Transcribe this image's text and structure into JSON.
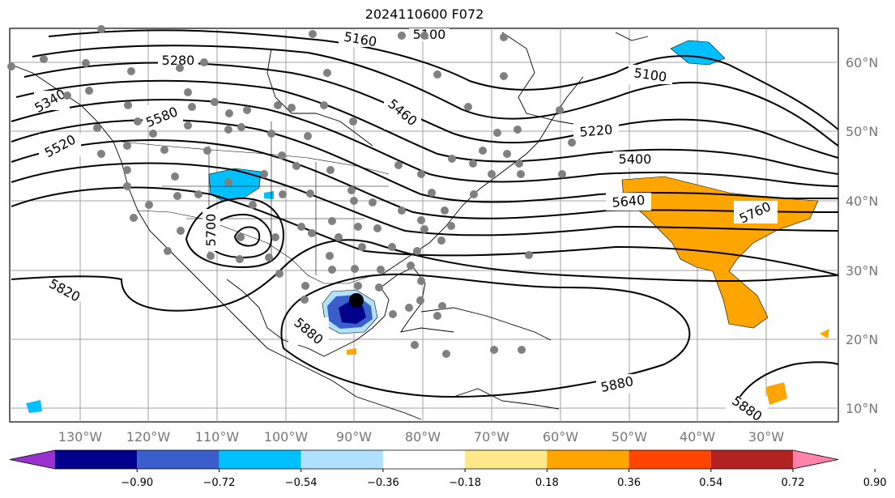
{
  "title": "2024110600 F072",
  "lat_labels": [
    "60°N",
    "50°N",
    "40°N",
    "30°N",
    "20°N",
    "10°N"
  ],
  "lon_labels": [
    "130°W",
    "120°W",
    "110°W",
    "100°W",
    "90°W",
    "80°W",
    "70°W",
    "60°W",
    "50°W",
    "40°W",
    "30°W"
  ],
  "contour_labels": [
    "5160",
    "5100",
    "5280",
    "5340",
    "5460",
    "5580",
    "5520",
    "5100",
    "5220",
    "5400",
    "5640",
    "5760",
    "5700",
    "5820",
    "5880",
    "5880",
    "5880"
  ],
  "colorbar": {
    "ticks": [
      "−0.90",
      "−0.72",
      "−0.54",
      "−0.36",
      "−0.18",
      "0.18",
      "0.36",
      "0.54",
      "0.72",
      "0.90"
    ],
    "colors": [
      "#9b30d0",
      "#00008b",
      "#3a5fcd",
      "#00bfff",
      "#b0e2ff",
      "#ffffff",
      "#ffe88a",
      "#ffa500",
      "#ff4500",
      "#b22222",
      "#ff82ab"
    ]
  }
}
